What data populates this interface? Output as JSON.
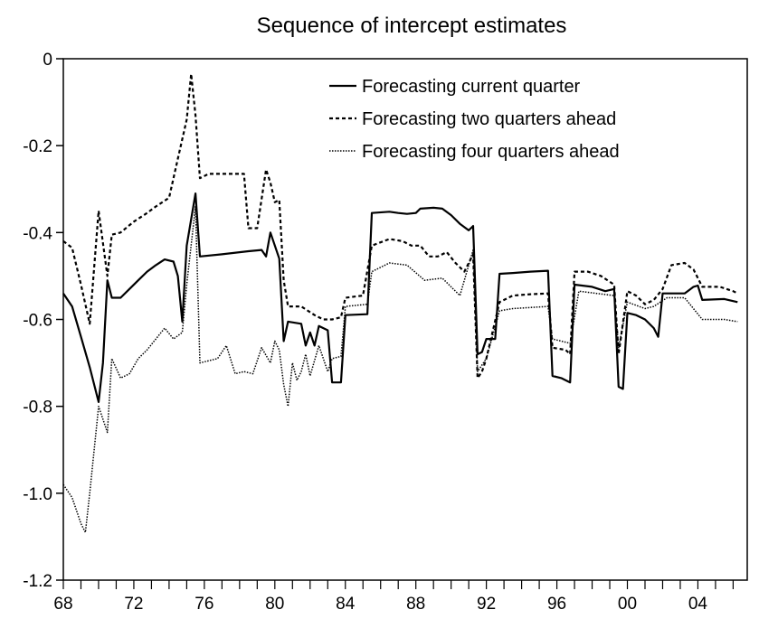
{
  "chart_data": {
    "type": "line",
    "title": "Sequence of intercept estimates",
    "xlabel": "",
    "ylabel": "",
    "xlim": [
      1968,
      2006.8
    ],
    "ylim": [
      -1.2,
      0
    ],
    "x_ticks": [
      1968,
      1972,
      1976,
      1980,
      1984,
      1988,
      1992,
      1996,
      2000,
      2004
    ],
    "x_tick_labels": [
      "68",
      "72",
      "76",
      "80",
      "84",
      "88",
      "92",
      "96",
      "00",
      "04"
    ],
    "y_ticks": [
      0,
      -0.2,
      -0.4,
      -0.6,
      -0.8,
      -1.0,
      -1.2
    ],
    "y_tick_labels": [
      "0",
      "-0.2",
      "-0.4",
      "-0.6",
      "-0.8",
      "-1.0",
      "-1.2"
    ],
    "grid": false,
    "legend_position": "top-right",
    "series": [
      {
        "name": "Forecasting current quarter",
        "style": "solid",
        "points": [
          [
            1968.0,
            -0.54
          ],
          [
            1968.5,
            -0.57
          ],
          [
            1969.0,
            -0.64
          ],
          [
            1969.5,
            -0.71
          ],
          [
            1970.0,
            -0.79
          ],
          [
            1970.25,
            -0.7
          ],
          [
            1970.5,
            -0.51
          ],
          [
            1970.75,
            -0.55
          ],
          [
            1971.25,
            -0.55
          ],
          [
            1971.75,
            -0.53
          ],
          [
            1972.25,
            -0.51
          ],
          [
            1972.75,
            -0.49
          ],
          [
            1973.25,
            -0.475
          ],
          [
            1973.75,
            -0.462
          ],
          [
            1974.25,
            -0.467
          ],
          [
            1974.5,
            -0.5
          ],
          [
            1974.75,
            -0.605
          ],
          [
            1975.0,
            -0.43
          ],
          [
            1975.5,
            -0.31
          ],
          [
            1975.75,
            -0.455
          ],
          [
            1977.0,
            -0.45
          ],
          [
            1978.5,
            -0.443
          ],
          [
            1979.25,
            -0.44
          ],
          [
            1979.5,
            -0.455
          ],
          [
            1979.75,
            -0.4
          ],
          [
            1980.25,
            -0.46
          ],
          [
            1980.5,
            -0.65
          ],
          [
            1980.75,
            -0.605
          ],
          [
            1981.5,
            -0.61
          ],
          [
            1981.75,
            -0.66
          ],
          [
            1982.0,
            -0.63
          ],
          [
            1982.25,
            -0.66
          ],
          [
            1982.5,
            -0.615
          ],
          [
            1983.0,
            -0.625
          ],
          [
            1983.25,
            -0.745
          ],
          [
            1983.75,
            -0.745
          ],
          [
            1984.0,
            -0.59
          ],
          [
            1985.25,
            -0.588
          ],
          [
            1985.5,
            -0.355
          ],
          [
            1986.5,
            -0.352
          ],
          [
            1987.0,
            -0.355
          ],
          [
            1987.5,
            -0.357
          ],
          [
            1988.0,
            -0.355
          ],
          [
            1988.25,
            -0.345
          ],
          [
            1989.0,
            -0.343
          ],
          [
            1989.5,
            -0.345
          ],
          [
            1990.0,
            -0.36
          ],
          [
            1990.5,
            -0.38
          ],
          [
            1991.0,
            -0.395
          ],
          [
            1991.25,
            -0.385
          ],
          [
            1991.5,
            -0.68
          ],
          [
            1991.75,
            -0.675
          ],
          [
            1992.0,
            -0.645
          ],
          [
            1992.5,
            -0.645
          ],
          [
            1992.75,
            -0.495
          ],
          [
            1993.5,
            -0.493
          ],
          [
            1994.5,
            -0.49
          ],
          [
            1995.5,
            -0.488
          ],
          [
            1995.75,
            -0.73
          ],
          [
            1996.25,
            -0.735
          ],
          [
            1996.75,
            -0.745
          ],
          [
            1997.0,
            -0.52
          ],
          [
            1998.0,
            -0.525
          ],
          [
            1998.75,
            -0.535
          ],
          [
            1999.25,
            -0.53
          ],
          [
            1999.5,
            -0.755
          ],
          [
            1999.75,
            -0.76
          ],
          [
            2000.0,
            -0.585
          ],
          [
            2000.5,
            -0.59
          ],
          [
            2001.0,
            -0.6
          ],
          [
            2001.5,
            -0.62
          ],
          [
            2001.75,
            -0.64
          ],
          [
            2002.0,
            -0.54
          ],
          [
            2003.25,
            -0.54
          ],
          [
            2003.75,
            -0.525
          ],
          [
            2004.0,
            -0.522
          ],
          [
            2004.25,
            -0.555
          ],
          [
            2005.5,
            -0.553
          ],
          [
            2006.25,
            -0.56
          ]
        ]
      },
      {
        "name": "Forecasting two quarters ahead",
        "style": "dashed",
        "points": [
          [
            1968.0,
            -0.42
          ],
          [
            1968.5,
            -0.435
          ],
          [
            1969.0,
            -0.52
          ],
          [
            1969.5,
            -0.61
          ],
          [
            1970.0,
            -0.35
          ],
          [
            1970.5,
            -0.5
          ],
          [
            1970.75,
            -0.405
          ],
          [
            1971.25,
            -0.4
          ],
          [
            1972.0,
            -0.375
          ],
          [
            1972.75,
            -0.355
          ],
          [
            1973.25,
            -0.34
          ],
          [
            1974.0,
            -0.32
          ],
          [
            1974.5,
            -0.23
          ],
          [
            1975.0,
            -0.14
          ],
          [
            1975.25,
            -0.035
          ],
          [
            1975.5,
            -0.13
          ],
          [
            1975.75,
            -0.275
          ],
          [
            1976.25,
            -0.265
          ],
          [
            1977.25,
            -0.265
          ],
          [
            1978.25,
            -0.265
          ],
          [
            1978.5,
            -0.39
          ],
          [
            1979.0,
            -0.39
          ],
          [
            1979.5,
            -0.255
          ],
          [
            1979.75,
            -0.285
          ],
          [
            1980.0,
            -0.33
          ],
          [
            1980.25,
            -0.325
          ],
          [
            1980.5,
            -0.51
          ],
          [
            1980.75,
            -0.57
          ],
          [
            1981.5,
            -0.57
          ],
          [
            1982.25,
            -0.59
          ],
          [
            1982.75,
            -0.6
          ],
          [
            1983.25,
            -0.6
          ],
          [
            1983.75,
            -0.595
          ],
          [
            1984.0,
            -0.55
          ],
          [
            1985.0,
            -0.545
          ],
          [
            1985.5,
            -0.43
          ],
          [
            1986.5,
            -0.415
          ],
          [
            1987.25,
            -0.42
          ],
          [
            1987.75,
            -0.43
          ],
          [
            1988.25,
            -0.43
          ],
          [
            1988.75,
            -0.455
          ],
          [
            1989.25,
            -0.455
          ],
          [
            1989.75,
            -0.445
          ],
          [
            1990.25,
            -0.47
          ],
          [
            1990.75,
            -0.49
          ],
          [
            1991.25,
            -0.45
          ],
          [
            1991.5,
            -0.735
          ],
          [
            1991.75,
            -0.72
          ],
          [
            1992.0,
            -0.69
          ],
          [
            1992.75,
            -0.56
          ],
          [
            1993.5,
            -0.545
          ],
          [
            1994.5,
            -0.542
          ],
          [
            1995.5,
            -0.54
          ],
          [
            1995.75,
            -0.665
          ],
          [
            1996.5,
            -0.67
          ],
          [
            1996.75,
            -0.68
          ],
          [
            1997.0,
            -0.49
          ],
          [
            1997.75,
            -0.49
          ],
          [
            1998.5,
            -0.5
          ],
          [
            1999.25,
            -0.52
          ],
          [
            1999.5,
            -0.68
          ],
          [
            2000.0,
            -0.535
          ],
          [
            2000.5,
            -0.545
          ],
          [
            2001.0,
            -0.565
          ],
          [
            2001.5,
            -0.555
          ],
          [
            2002.0,
            -0.53
          ],
          [
            2002.5,
            -0.475
          ],
          [
            2003.25,
            -0.47
          ],
          [
            2003.75,
            -0.485
          ],
          [
            2004.25,
            -0.525
          ],
          [
            2005.25,
            -0.525
          ],
          [
            2006.0,
            -0.535
          ],
          [
            2006.25,
            -0.54
          ]
        ]
      },
      {
        "name": "Forecasting four quarters ahead",
        "style": "dotted",
        "points": [
          [
            1968.0,
            -0.98
          ],
          [
            1968.5,
            -1.01
          ],
          [
            1969.0,
            -1.07
          ],
          [
            1969.25,
            -1.09
          ],
          [
            1969.5,
            -1.0
          ],
          [
            1970.0,
            -0.8
          ],
          [
            1970.5,
            -0.86
          ],
          [
            1970.75,
            -0.69
          ],
          [
            1971.25,
            -0.735
          ],
          [
            1971.75,
            -0.725
          ],
          [
            1972.25,
            -0.69
          ],
          [
            1972.75,
            -0.67
          ],
          [
            1973.25,
            -0.645
          ],
          [
            1973.75,
            -0.62
          ],
          [
            1974.25,
            -0.645
          ],
          [
            1974.75,
            -0.63
          ],
          [
            1975.0,
            -0.52
          ],
          [
            1975.5,
            -0.34
          ],
          [
            1975.75,
            -0.7
          ],
          [
            1976.75,
            -0.69
          ],
          [
            1977.25,
            -0.66
          ],
          [
            1977.75,
            -0.725
          ],
          [
            1978.25,
            -0.72
          ],
          [
            1978.75,
            -0.725
          ],
          [
            1979.25,
            -0.665
          ],
          [
            1979.75,
            -0.7
          ],
          [
            1980.0,
            -0.65
          ],
          [
            1980.25,
            -0.67
          ],
          [
            1980.5,
            -0.75
          ],
          [
            1980.75,
            -0.8
          ],
          [
            1981.0,
            -0.7
          ],
          [
            1981.25,
            -0.74
          ],
          [
            1981.5,
            -0.72
          ],
          [
            1981.75,
            -0.68
          ],
          [
            1982.0,
            -0.73
          ],
          [
            1982.5,
            -0.66
          ],
          [
            1983.0,
            -0.72
          ],
          [
            1983.25,
            -0.69
          ],
          [
            1983.75,
            -0.685
          ],
          [
            1984.0,
            -0.57
          ],
          [
            1985.25,
            -0.565
          ],
          [
            1985.5,
            -0.49
          ],
          [
            1986.5,
            -0.47
          ],
          [
            1987.5,
            -0.475
          ],
          [
            1988.5,
            -0.51
          ],
          [
            1989.5,
            -0.505
          ],
          [
            1990.5,
            -0.545
          ],
          [
            1991.25,
            -0.44
          ],
          [
            1991.5,
            -0.72
          ],
          [
            1992.0,
            -0.69
          ],
          [
            1992.75,
            -0.58
          ],
          [
            1993.5,
            -0.575
          ],
          [
            1995.5,
            -0.57
          ],
          [
            1995.75,
            -0.645
          ],
          [
            1996.75,
            -0.655
          ],
          [
            1997.25,
            -0.535
          ],
          [
            1998.25,
            -0.54
          ],
          [
            1999.25,
            -0.545
          ],
          [
            1999.5,
            -0.665
          ],
          [
            2000.0,
            -0.56
          ],
          [
            2001.0,
            -0.575
          ],
          [
            2001.5,
            -0.57
          ],
          [
            2002.25,
            -0.55
          ],
          [
            2003.25,
            -0.55
          ],
          [
            2004.25,
            -0.6
          ],
          [
            2005.5,
            -0.6
          ],
          [
            2006.25,
            -0.605
          ]
        ]
      }
    ]
  }
}
